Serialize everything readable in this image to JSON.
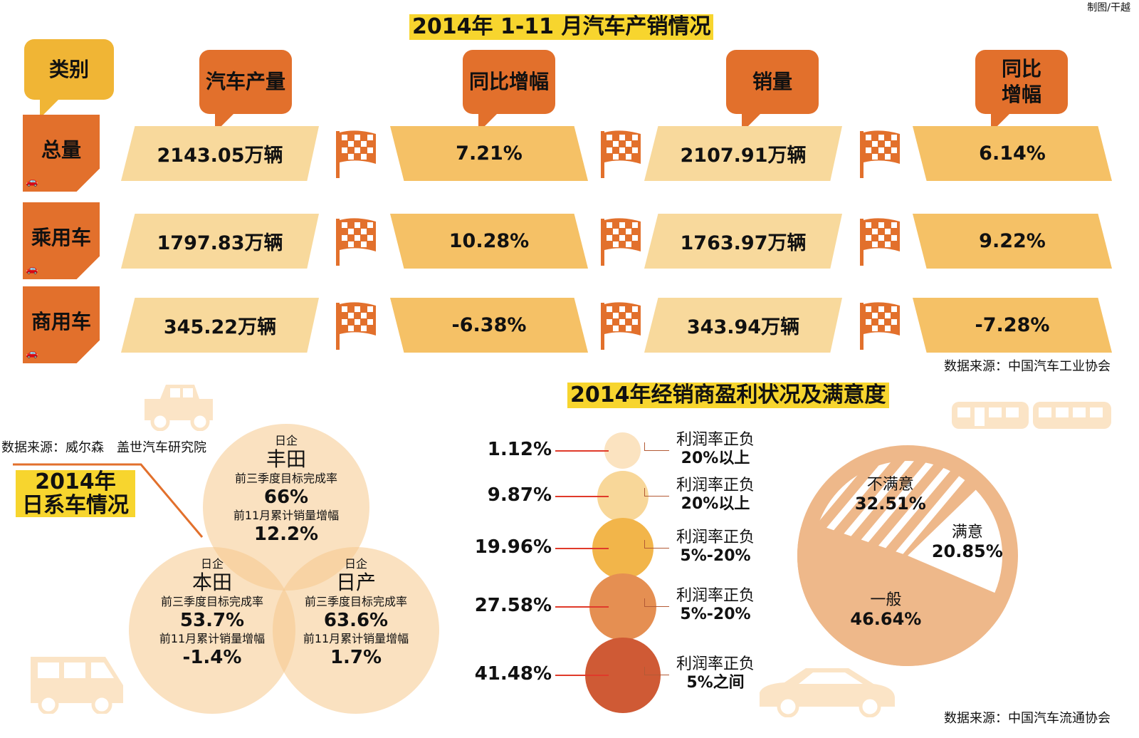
{
  "credit": "制图/干越",
  "section1": {
    "title": "2014年 1-11 月汽车产销情况",
    "header_category": "类别",
    "headers": [
      "汽车产量",
      "同比增幅",
      "销量",
      "同比增幅"
    ],
    "rows": [
      {
        "category": "总量",
        "values": [
          "2143.05万辆",
          "7.21%",
          "2107.91万辆",
          "6.14%"
        ]
      },
      {
        "category": "乘用车",
        "values": [
          "1797.83万辆",
          "10.28%",
          "1763.97万辆",
          "9.22%"
        ]
      },
      {
        "category": "商用车",
        "values": [
          "345.22万辆",
          "-6.38%",
          "343.94万辆",
          "-7.28%"
        ]
      }
    ],
    "source": "数据来源：中国汽车工业协会"
  },
  "section2": {
    "source": "数据来源：威尔森　盖世汽车研究院",
    "title_line1": "2014年",
    "title_line2": "日系车情况",
    "metric1_label": "前三季度目标完成率",
    "metric2_label": "前11月累计销量增幅",
    "brands": [
      {
        "group": "日企",
        "name": "丰田",
        "target_completion": "66%",
        "sales_growth": "12.2%"
      },
      {
        "group": "日企",
        "name": "本田",
        "target_completion": "53.7%",
        "sales_growth": "-1.4%"
      },
      {
        "group": "日企",
        "name": "日产",
        "target_completion": "63.6%",
        "sales_growth": "1.7%"
      }
    ]
  },
  "chart_data": [
    {
      "type": "bubble",
      "title": "2014年经销商盈利状况及满意度",
      "categories": [
        "利润率正负20%以上",
        "利润率正负20%以上",
        "利润率正负5%-20%",
        "利润率正负5%-20%",
        "利润率正负5%之间"
      ],
      "label_line1": [
        "利润率正负",
        "利润率正负",
        "利润率正负",
        "利润率正负",
        "利润率正负"
      ],
      "label_line2": [
        "20%以上",
        "20%以上",
        "5%-20%",
        "5%-20%",
        "5%之间"
      ],
      "values": [
        1.12,
        9.87,
        19.96,
        27.58,
        41.48
      ],
      "value_labels": [
        "1.12%",
        "9.87%",
        "19.96%",
        "27.58%",
        "41.48%"
      ],
      "colors": [
        "#fbe3c0",
        "#f8d799",
        "#f2b54a",
        "#e58f52",
        "#cf5a35"
      ]
    },
    {
      "type": "pie",
      "slices": [
        {
          "label": "不满意",
          "value": 32.51,
          "value_label": "32.51%",
          "style": "hatched"
        },
        {
          "label": "满意",
          "value": 20.85,
          "value_label": "20.85%",
          "style": "white"
        },
        {
          "label": "一般",
          "value": 46.64,
          "value_label": "46.64%",
          "style": "solid"
        }
      ],
      "color": "#eeb88a"
    }
  ],
  "section3_source": "数据来源：中国汽车流通协会",
  "colors": {
    "highlight": "#f7d52e",
    "orange": "#e2702c",
    "header_yellow": "#f0b535",
    "cell_light": "#f8d99c",
    "cell_dark": "#f5c166"
  }
}
